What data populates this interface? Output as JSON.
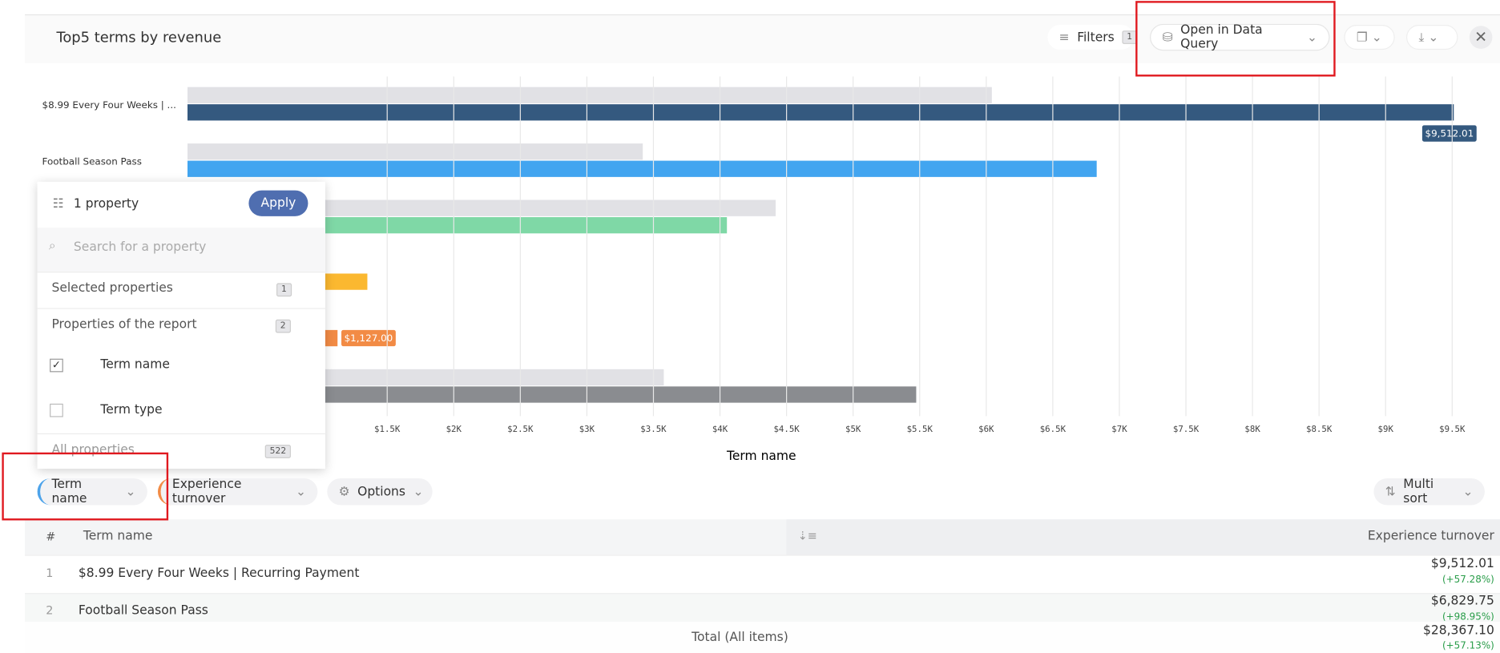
{
  "header": {
    "title": "Top5 terms by revenue",
    "filters": "Filters",
    "filter_count": "1",
    "open_query": "Open in Data Query"
  },
  "chart_data": {
    "type": "bar",
    "orientation": "horizontal",
    "categories": [
      "$8.99 Every Four Weeks | ...",
      "Football Season Pass",
      null,
      null,
      null,
      null
    ],
    "series": [
      {
        "color": "#e1e1e5",
        "values": [
          6042,
          3420,
          4418,
          null,
          null,
          3578
        ]
      },
      {
        "colors": [
          "#34597f",
          "#42a5f0",
          "#7fd8a6",
          "#fbb830",
          "#f28b45",
          "#8a8c90"
        ],
        "values": [
          9512.01,
          6829.75,
          4052,
          1351,
          1127,
          5474
        ],
        "value_labels": [
          "$9,512.01",
          null,
          null,
          null,
          "$1,127.00",
          null
        ]
      }
    ],
    "xlim": [
      0,
      9500
    ],
    "xticks": [
      {
        "value": 1500,
        "label": "$1.5K"
      },
      {
        "value": 2000,
        "label": "$2K"
      },
      {
        "value": 2500,
        "label": "$2.5K"
      },
      {
        "value": 3000,
        "label": "$3K"
      },
      {
        "value": 3500,
        "label": "$3.5K"
      },
      {
        "value": 4000,
        "label": "$4K"
      },
      {
        "value": 4500,
        "label": "$4.5K"
      },
      {
        "value": 5000,
        "label": "$5K"
      },
      {
        "value": 5500,
        "label": "$5.5K"
      },
      {
        "value": 6000,
        "label": "$6K"
      },
      {
        "value": 6500,
        "label": "$6.5K"
      },
      {
        "value": 7000,
        "label": "$7K"
      },
      {
        "value": 7500,
        "label": "$7.5K"
      },
      {
        "value": 8000,
        "label": "$8K"
      },
      {
        "value": 8500,
        "label": "$8.5K"
      },
      {
        "value": 9000,
        "label": "$9K"
      },
      {
        "value": 9500,
        "label": "$9.5K"
      }
    ],
    "xlabel": "Term name",
    "grid": true
  },
  "popover": {
    "title": "1 property",
    "apply": "Apply",
    "search": "Search for a property",
    "selected": "Selected properties",
    "selected_count": "1",
    "report": "Properties of the report",
    "report_count": "2",
    "items": [
      "Term name",
      "Term type"
    ],
    "all": "All properties",
    "all_count": "522"
  },
  "toolbar": {
    "dimension": "Term name",
    "metric": "Experience turnover",
    "options": "Options",
    "sort": "Multi sort"
  },
  "table": {
    "headers": [
      "#",
      "Term name",
      "Experience turnover"
    ],
    "rows": [
      [
        "1",
        "$8.99 Every Four Weeks | Recurring Payment",
        "$9,512.01",
        "(+57.28%)"
      ],
      [
        "2",
        "Football Season Pass",
        "$6,829.75",
        "(+98.95%)"
      ]
    ],
    "total": [
      "Total (All items)",
      "$28,367.10",
      "(+57.13%)"
    ]
  }
}
